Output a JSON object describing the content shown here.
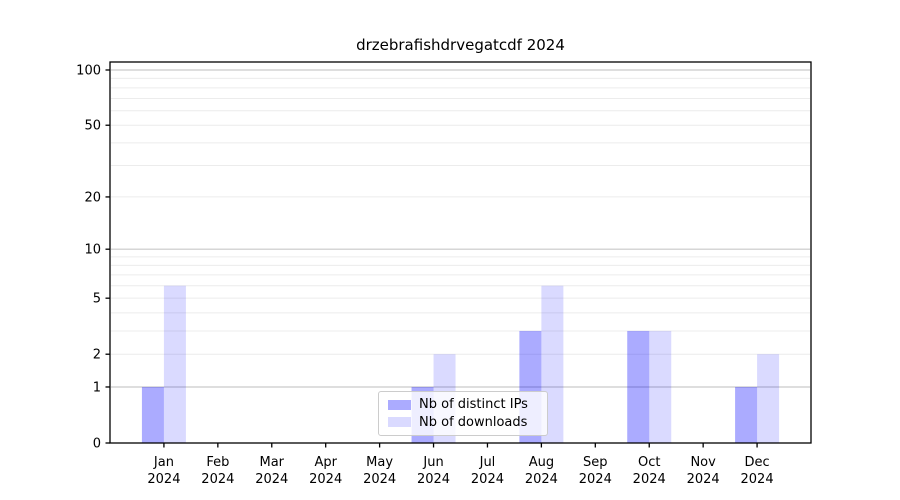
{
  "chart_data": {
    "type": "bar",
    "title": "drzebrafishdrvegatcdf 2024",
    "scale": "log1p",
    "categories": [
      "Jan 2024",
      "Feb 2024",
      "Mar 2024",
      "Apr 2024",
      "May 2024",
      "Jun 2024",
      "Jul 2024",
      "Aug 2024",
      "Sep 2024",
      "Oct 2024",
      "Nov 2024",
      "Dec 2024"
    ],
    "series": [
      {
        "name": "Nb of distinct IPs",
        "color": "#0000ff",
        "alpha": 0.33,
        "values": [
          1,
          0,
          0,
          0,
          0,
          1,
          0,
          3,
          0,
          3,
          0,
          1
        ]
      },
      {
        "name": "Nb of downloads",
        "color": "#0000ff",
        "alpha": 0.145,
        "values": [
          6,
          0,
          0,
          0,
          0,
          2,
          0,
          6,
          0,
          3,
          0,
          2
        ]
      }
    ],
    "yticks": [
      100,
      50,
      20,
      10,
      5,
      2,
      1,
      0
    ],
    "ylim": [
      0,
      110.5
    ],
    "grid": "horizontal, minor at 2-9/20-90 light, decades 1/10/100 darker",
    "legend_position": "lower center",
    "axis_color": "#000000",
    "grid_minor_color": "#ececec",
    "grid_major_color": "#c9c9c9",
    "xlabel": "",
    "ylabel": ""
  }
}
